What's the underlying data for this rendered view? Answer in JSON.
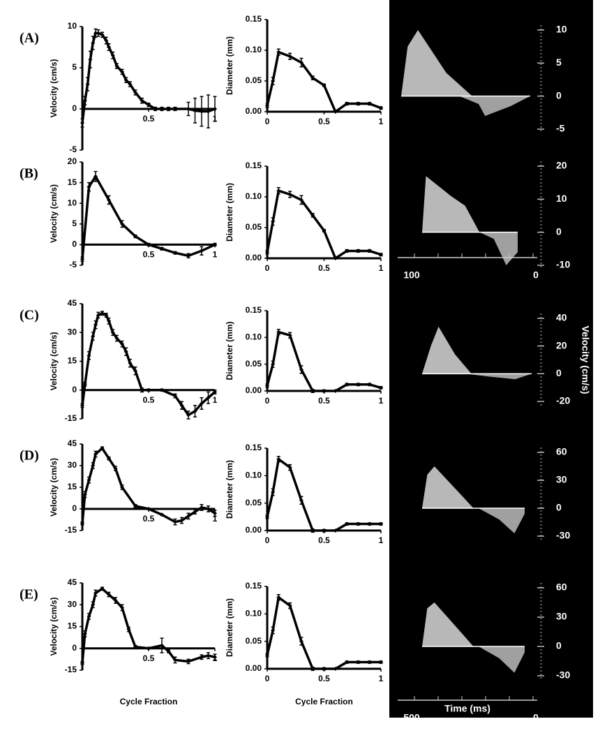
{
  "chart_data": [
    {
      "type": "line",
      "label": "(A)",
      "ylabel": "Velocity (cm/s)",
      "color": "#000000",
      "xlim": [
        0,
        1
      ],
      "ylim": [
        -5,
        10
      ],
      "yticks": [
        -5,
        0,
        5,
        10
      ],
      "xticks": [
        0.5,
        1
      ],
      "x": [
        0,
        0.02,
        0.04,
        0.06,
        0.08,
        0.1,
        0.12,
        0.15,
        0.18,
        0.2,
        0.23,
        0.26,
        0.3,
        0.33,
        0.36,
        0.4,
        0.45,
        0.5,
        0.55,
        0.6,
        0.65,
        0.7,
        0.8,
        0.85,
        0.9,
        0.95,
        1
      ],
      "values": [
        -1.7,
        1,
        3,
        6,
        8,
        9.2,
        9.2,
        9,
        8.3,
        7.5,
        6.5,
        5.2,
        4.5,
        3.5,
        3,
        2,
        1,
        0.5,
        0,
        0,
        0,
        0,
        0,
        -0.2,
        -0.3,
        -0.3,
        0
      ],
      "errors": [
        0.5,
        0.5,
        0.8,
        1,
        0.8,
        0.5,
        0.4,
        0.3,
        0.4,
        0.4,
        0.4,
        0.3,
        0.3,
        0.3,
        0.3,
        0.3,
        0.3,
        0.2,
        0.2,
        0.2,
        0.2,
        0.2,
        0.8,
        1.5,
        1.8,
        2,
        1.5
      ]
    },
    {
      "type": "line",
      "ylabel": "Diameter (mm)",
      "color": "#000000",
      "xlim": [
        0,
        1
      ],
      "ylim": [
        0,
        0.15
      ],
      "yticks": [
        {
          "value": 0,
          "label": "0.00"
        },
        {
          "value": 0.05,
          "label": "0.05"
        },
        {
          "value": 0.1,
          "label": "0.10"
        },
        {
          "value": 0.15,
          "label": "0.15"
        }
      ],
      "xticks": [
        0,
        0.5,
        1
      ],
      "x": [
        0,
        0.05,
        0.1,
        0.2,
        0.3,
        0.4,
        0.5,
        0.6,
        0.7,
        0.8,
        0.9,
        1
      ],
      "values": [
        0.01,
        0.05,
        0.097,
        0.09,
        0.08,
        0.055,
        0.043,
        0,
        0.013,
        0.013,
        0.013,
        0.006
      ],
      "errors": [
        0.003,
        0.006,
        0.005,
        0.005,
        0.007,
        0.003,
        0.002,
        0,
        0.002,
        0.002,
        0.002,
        0.002
      ]
    },
    {
      "type": "line",
      "label": "(B)",
      "ylabel": "Velocity (cm/s)",
      "color": "#000000",
      "xlim": [
        0,
        1
      ],
      "ylim": [
        -5,
        20
      ],
      "yticks": [
        -5,
        0,
        5,
        10,
        15,
        20
      ],
      "xticks": [
        0.5,
        1
      ],
      "x": [
        0,
        0.05,
        0.1,
        0.2,
        0.3,
        0.4,
        0.5,
        0.6,
        0.7,
        0.8,
        0.9,
        1
      ],
      "values": [
        -3.5,
        14,
        16.5,
        10.8,
        5,
        2,
        0,
        -1,
        -2,
        -2.7,
        -1.5,
        0
      ],
      "errors": [
        0.5,
        1,
        1.2,
        1,
        0.8,
        0.3,
        0.3,
        0.3,
        0.3,
        0.5,
        1,
        0.3
      ]
    },
    {
      "type": "line",
      "ylabel": "Diameter (mm)",
      "color": "#000000",
      "xlim": [
        0,
        1
      ],
      "ylim": [
        0,
        0.15
      ],
      "yticks": [
        {
          "value": 0,
          "label": "0.00"
        },
        {
          "value": 0.05,
          "label": "0.05"
        },
        {
          "value": 0.1,
          "label": "0.10"
        },
        {
          "value": 0.15,
          "label": "0.15"
        }
      ],
      "xticks": [
        0,
        0.5,
        1
      ],
      "x": [
        0,
        0.05,
        0.1,
        0.2,
        0.3,
        0.4,
        0.5,
        0.6,
        0.7,
        0.8,
        0.9,
        1
      ],
      "values": [
        0.01,
        0.06,
        0.11,
        0.104,
        0.095,
        0.07,
        0.045,
        0,
        0.012,
        0.012,
        0.012,
        0.006
      ],
      "errors": [
        0.003,
        0.006,
        0.005,
        0.005,
        0.007,
        0.003,
        0.002,
        0,
        0.002,
        0.002,
        0.002,
        0.002
      ]
    },
    {
      "type": "line",
      "label": "(C)",
      "ylabel": "Velocity (cm/s)",
      "color": "#000000",
      "xlim": [
        0,
        1
      ],
      "ylim": [
        -15,
        45
      ],
      "yticks": [
        -15,
        0,
        15,
        30,
        45
      ],
      "xticks": [
        0.5,
        1
      ],
      "x": [
        0,
        0.02,
        0.05,
        0.08,
        0.1,
        0.12,
        0.15,
        0.18,
        0.2,
        0.23,
        0.26,
        0.3,
        0.33,
        0.36,
        0.4,
        0.45,
        0.5,
        0.6,
        0.7,
        0.75,
        0.8,
        0.85,
        0.9,
        0.95,
        1
      ],
      "values": [
        -8,
        3,
        18,
        28,
        34,
        39,
        40,
        39,
        36,
        30,
        27,
        24,
        20,
        14,
        10,
        0,
        0,
        0,
        -3,
        -8,
        -13,
        -11,
        -7,
        -4,
        -1
      ],
      "errors": [
        1,
        1,
        2,
        2,
        2,
        1.5,
        1,
        1,
        1.5,
        1.5,
        1.5,
        1.5,
        2,
        2,
        2,
        1,
        0.5,
        0.5,
        1,
        2,
        2,
        3,
        3,
        3,
        1
      ]
    },
    {
      "type": "line",
      "ylabel": "Diameter (mm)",
      "color": "#000000",
      "xlim": [
        0,
        1
      ],
      "ylim": [
        0,
        0.15
      ],
      "yticks": [
        {
          "value": 0,
          "label": "0.00"
        },
        {
          "value": 0.05,
          "label": "0.05"
        },
        {
          "value": 0.1,
          "label": "0.10"
        },
        {
          "value": 0.15,
          "label": "0.15"
        }
      ],
      "xticks": [
        0,
        0.5,
        1
      ],
      "x": [
        0,
        0.05,
        0.1,
        0.2,
        0.3,
        0.4,
        0.5,
        0.6,
        0.7,
        0.8,
        0.9,
        1
      ],
      "values": [
        0.01,
        0.05,
        0.11,
        0.104,
        0.04,
        0,
        0,
        0,
        0.012,
        0.012,
        0.012,
        0.006
      ],
      "errors": [
        0.003,
        0.006,
        0.005,
        0.005,
        0.007,
        0.003,
        0.002,
        0,
        0.002,
        0.002,
        0.002,
        0.002
      ]
    },
    {
      "type": "line",
      "label": "(D)",
      "ylabel": "Velocity (cm/s)",
      "color": "#000000",
      "xlim": [
        0,
        1
      ],
      "ylim": [
        -15,
        45
      ],
      "yticks": [
        -15,
        0,
        15,
        30,
        45
      ],
      "xticks": [
        0.5,
        1
      ],
      "x": [
        0,
        0.02,
        0.05,
        0.08,
        0.1,
        0.15,
        0.2,
        0.25,
        0.3,
        0.4,
        0.5,
        0.6,
        0.7,
        0.75,
        0.8,
        0.85,
        0.9,
        0.95,
        1
      ],
      "values": [
        -10,
        10,
        20,
        30,
        38,
        42,
        35,
        28,
        15,
        2,
        0,
        -4,
        -9,
        -8,
        -5,
        -2,
        1,
        0,
        -3
      ],
      "errors": [
        1,
        2,
        2,
        2,
        2,
        1,
        1,
        1.5,
        1.5,
        1,
        0.5,
        0.5,
        2,
        2,
        2,
        1.5,
        2,
        2,
        2
      ]
    },
    {
      "type": "line",
      "ylabel": "Diameter (mm)",
      "color": "#000000",
      "xlim": [
        0,
        1
      ],
      "ylim": [
        0,
        0.15
      ],
      "yticks": [
        {
          "value": 0,
          "label": "0.00"
        },
        {
          "value": 0.05,
          "label": "0.05"
        },
        {
          "value": 0.1,
          "label": "0.10"
        },
        {
          "value": 0.15,
          "label": "0.15"
        }
      ],
      "xticks": [
        0,
        0.5,
        1
      ],
      "x": [
        0,
        0.05,
        0.1,
        0.2,
        0.3,
        0.4,
        0.5,
        0.6,
        0.7,
        0.8,
        0.9,
        1
      ],
      "values": [
        0.025,
        0.07,
        0.13,
        0.115,
        0.055,
        0,
        0,
        0,
        0.012,
        0.012,
        0.012,
        0.012
      ],
      "errors": [
        0.003,
        0.006,
        0.005,
        0.005,
        0.007,
        0.003,
        0.002,
        0,
        0.002,
        0.002,
        0.002,
        0.002
      ]
    },
    {
      "type": "line",
      "label": "(E)",
      "ylabel": "Velocity (cm/s)",
      "xlabel": "Cycle Fraction",
      "color": "#000000",
      "xlim": [
        0,
        1
      ],
      "ylim": [
        -15,
        45
      ],
      "yticks": [
        -15,
        0,
        15,
        30,
        45
      ],
      "xticks": [
        0.5,
        1
      ],
      "x": [
        0,
        0.02,
        0.05,
        0.08,
        0.1,
        0.15,
        0.2,
        0.25,
        0.3,
        0.35,
        0.4,
        0.5,
        0.6,
        0.65,
        0.7,
        0.8,
        0.9,
        0.95,
        1
      ],
      "values": [
        -10,
        10,
        22,
        30,
        38,
        41,
        37,
        33,
        28,
        13,
        1,
        0,
        2,
        -2,
        -8,
        -9,
        -6,
        -5,
        -6
      ],
      "errors": [
        1,
        2,
        2,
        2,
        2,
        1,
        1.5,
        2,
        2,
        1.5,
        1,
        0.5,
        5,
        1,
        2,
        1.5,
        1.5,
        2,
        2
      ]
    },
    {
      "type": "line",
      "ylabel": "Diameter (mm)",
      "xlabel": "Cycle Fraction",
      "color": "#000000",
      "xlim": [
        0,
        1
      ],
      "ylim": [
        0,
        0.15
      ],
      "yticks": [
        {
          "value": 0,
          "label": "0.00"
        },
        {
          "value": 0.05,
          "label": "0.05"
        },
        {
          "value": 0.1,
          "label": "0.10"
        },
        {
          "value": 0.15,
          "label": "0.15"
        }
      ],
      "xticks": [
        0,
        0.5,
        1
      ],
      "x": [
        0,
        0.05,
        0.1,
        0.2,
        0.3,
        0.4,
        0.5,
        0.6,
        0.7,
        0.8,
        0.9,
        1
      ],
      "values": [
        0.025,
        0.07,
        0.13,
        0.115,
        0.05,
        0,
        0,
        0,
        0.012,
        0.012,
        0.012,
        0.012
      ],
      "errors": [
        0.003,
        0.006,
        0.005,
        0.005,
        0.007,
        0.003,
        0.002,
        0,
        0.002,
        0.002,
        0.002,
        0.002
      ]
    }
  ],
  "doppler": [
    {
      "yticks": [
        10,
        5,
        0,
        -5
      ]
    },
    {
      "yticks": [
        20,
        10,
        0,
        -10
      ],
      "xlabels": [
        "100",
        "0"
      ]
    },
    {
      "yticks": [
        40,
        20,
        0,
        -20
      ],
      "ylabel": "Velocity (cm/s)"
    },
    {
      "yticks": [
        60,
        30,
        0,
        -30
      ]
    },
    {
      "yticks": [
        60,
        30,
        0,
        -30
      ],
      "xlabels": [
        "500",
        "0"
      ],
      "xlabel": "Time (ms)"
    }
  ]
}
